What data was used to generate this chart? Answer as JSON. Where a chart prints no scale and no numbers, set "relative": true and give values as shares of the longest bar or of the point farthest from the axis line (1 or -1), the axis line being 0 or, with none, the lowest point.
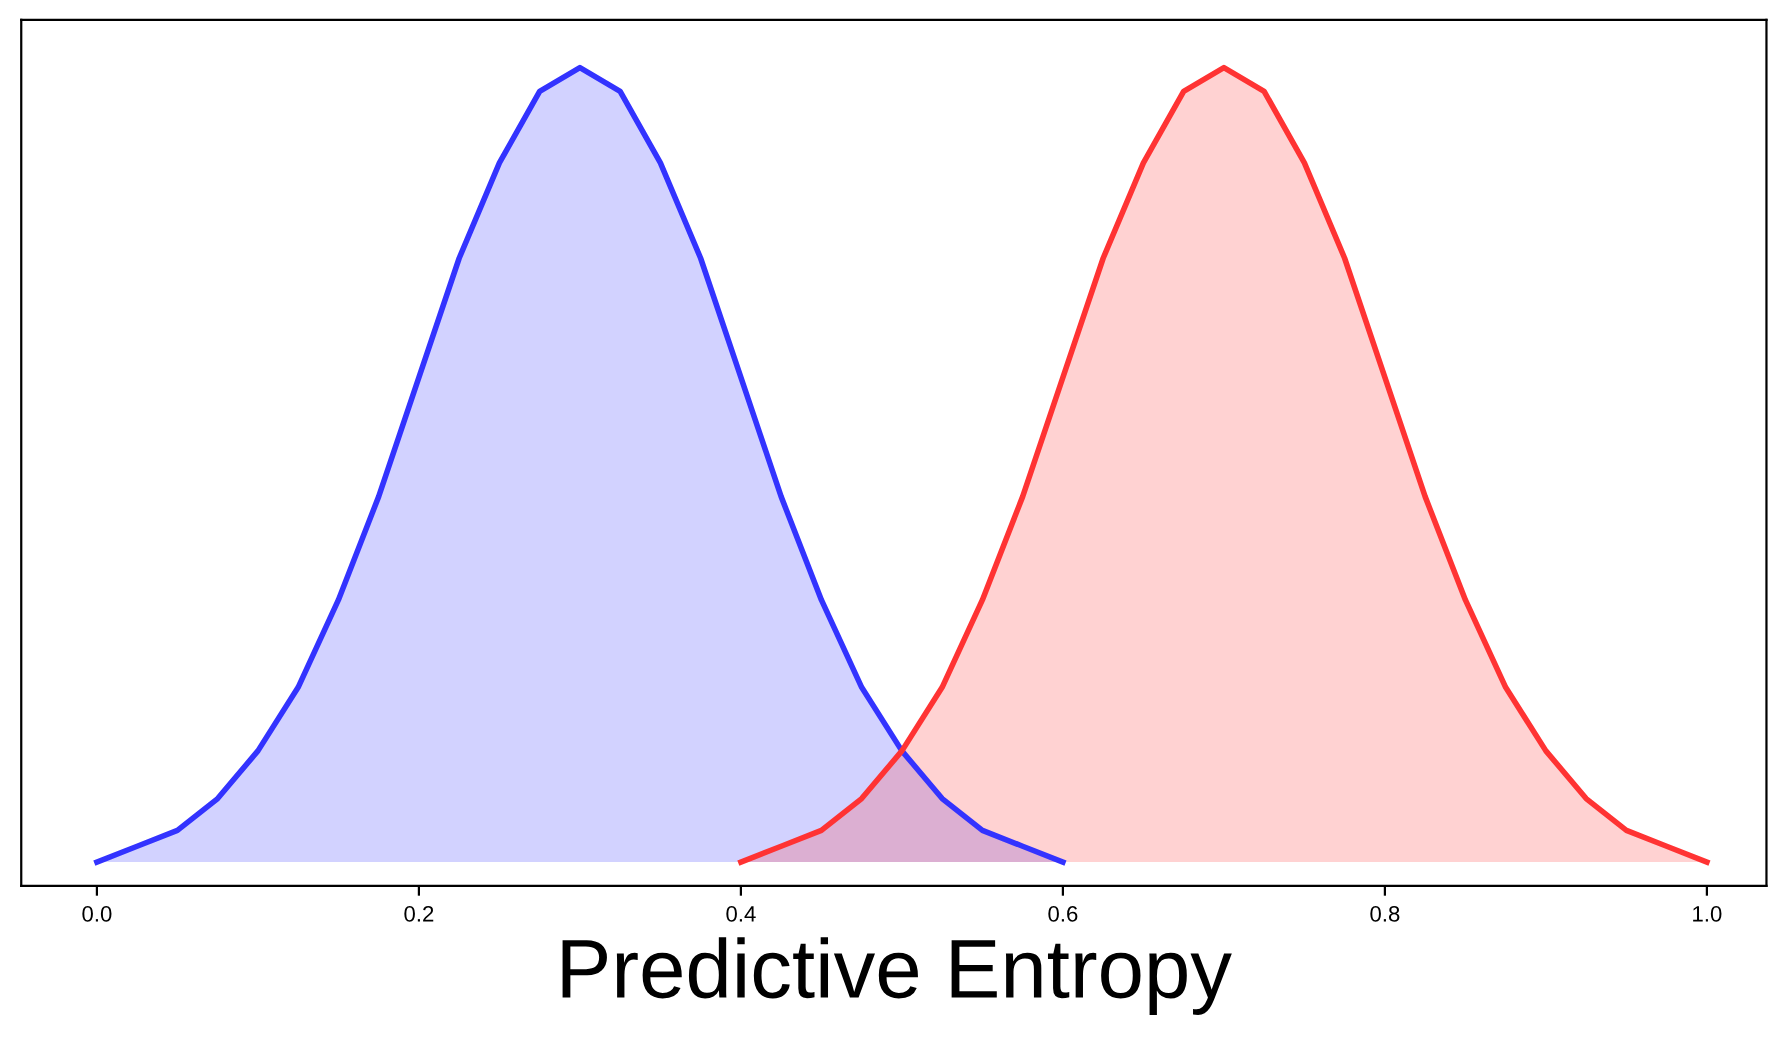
{
  "chart_data": {
    "type": "area",
    "relative": true,
    "xlabel": "Predictive Entropy",
    "xlim": [
      -0.047,
      1.037
    ],
    "xticks": [
      {
        "value": 0,
        "label": "0.0"
      },
      0.2,
      0.4,
      0.6,
      0.8,
      {
        "value": 1,
        "label": "1.0"
      }
    ],
    "tick_labels": "x",
    "grid": false,
    "legend": false,
    "series": [
      {
        "color": "#3333ff",
        "x": [
          0.0,
          0.025,
          0.05,
          0.075,
          0.1,
          0.125,
          0.15,
          0.175,
          0.2,
          0.225,
          0.25,
          0.275,
          0.3,
          0.325,
          0.35,
          0.375,
          0.4,
          0.425,
          0.45,
          0.475,
          0.5,
          0.525,
          0.55,
          0.575,
          0.6
        ],
        "values": [
          0,
          0.02,
          0.04,
          0.08,
          0.14,
          0.22,
          0.33,
          0.46,
          0.61,
          0.76,
          0.88,
          0.97,
          1,
          0.97,
          0.88,
          0.76,
          0.61,
          0.46,
          0.33,
          0.22,
          0.14,
          0.08,
          0.04,
          0.02,
          0
        ]
      },
      {
        "color": "#ff3333",
        "x": [
          0.4,
          0.425,
          0.45,
          0.475,
          0.5,
          0.525,
          0.55,
          0.575,
          0.6,
          0.625,
          0.65,
          0.675,
          0.7,
          0.725,
          0.75,
          0.775,
          0.8,
          0.825,
          0.85,
          0.875,
          0.9,
          0.925,
          0.95,
          0.975,
          1.0
        ],
        "values": [
          0,
          0.02,
          0.04,
          0.08,
          0.14,
          0.22,
          0.33,
          0.46,
          0.61,
          0.76,
          0.88,
          0.97,
          1,
          0.97,
          0.88,
          0.76,
          0.61,
          0.46,
          0.33,
          0.22,
          0.14,
          0.08,
          0.04,
          0.02,
          0
        ]
      }
    ]
  }
}
